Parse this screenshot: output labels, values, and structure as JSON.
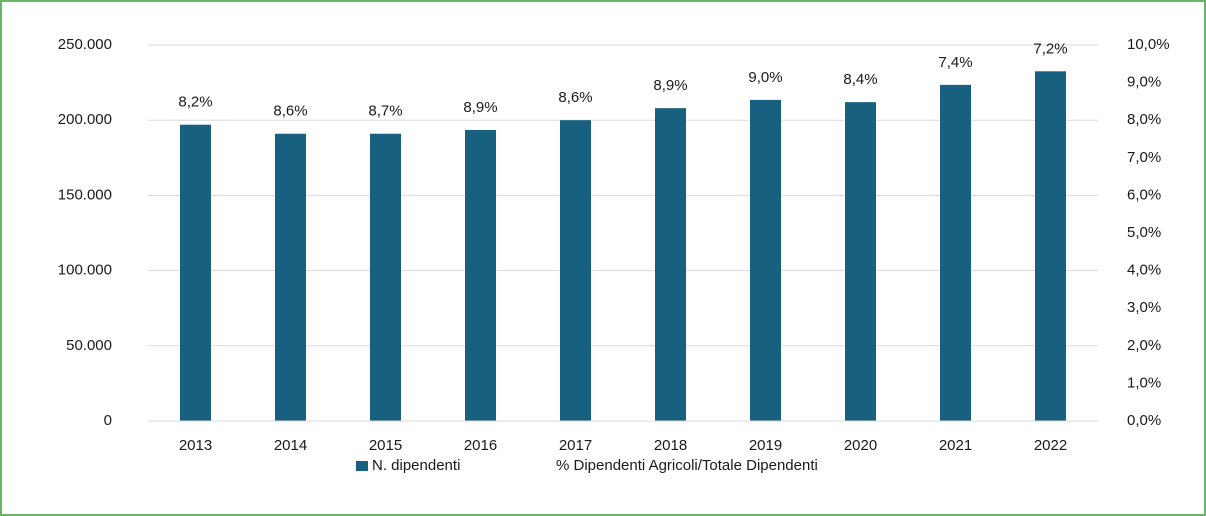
{
  "chart_data": {
    "type": "bar",
    "categories": [
      "2013",
      "2014",
      "2015",
      "2016",
      "2017",
      "2018",
      "2019",
      "2020",
      "2021",
      "2022"
    ],
    "series": [
      {
        "name": "N. dipendenti",
        "color": "#17607f",
        "values": [
          197000,
          191000,
          191000,
          193500,
          200000,
          208000,
          213500,
          212000,
          223500,
          232500
        ]
      },
      {
        "name": "% Dipendenti Agricoli/Totale Dipendenti",
        "axis": "y2",
        "values": [
          8.2,
          8.6,
          8.7,
          8.9,
          8.6,
          8.9,
          9.0,
          8.4,
          7.4,
          7.2
        ],
        "value_labels": [
          "8,2%",
          "8,6%",
          "8,7%",
          "8,9%",
          "8,6%",
          "8,9%",
          "9,0%",
          "8,4%",
          "7,4%",
          "7,2%"
        ]
      }
    ],
    "ylim": [
      0,
      250000
    ],
    "yticks": [
      0,
      {
        "value": 50000,
        "label": "50.000"
      },
      {
        "value": 100000,
        "label": "100.000"
      },
      {
        "value": 150000,
        "label": "150.000"
      },
      {
        "value": 200000,
        "label": "200.000"
      },
      {
        "value": 250000,
        "label": "250.000"
      }
    ],
    "y2lim": [
      0,
      10
    ],
    "y2ticks": [
      {
        "value": 0,
        "label": "0,0%"
      },
      {
        "value": 1,
        "label": "1,0%"
      },
      {
        "value": 2,
        "label": "2,0%"
      },
      {
        "value": 3,
        "label": "3,0%"
      },
      {
        "value": 4,
        "label": "4,0%"
      },
      {
        "value": 5,
        "label": "5,0%"
      },
      {
        "value": 6,
        "label": "6,0%"
      },
      {
        "value": 7,
        "label": "7,0%"
      },
      {
        "value": 8,
        "label": "8,0%"
      },
      {
        "value": 9,
        "label": "9,0%"
      },
      {
        "value": 10,
        "label": "10,0%"
      }
    ],
    "grid": true,
    "legend": "bottom"
  }
}
